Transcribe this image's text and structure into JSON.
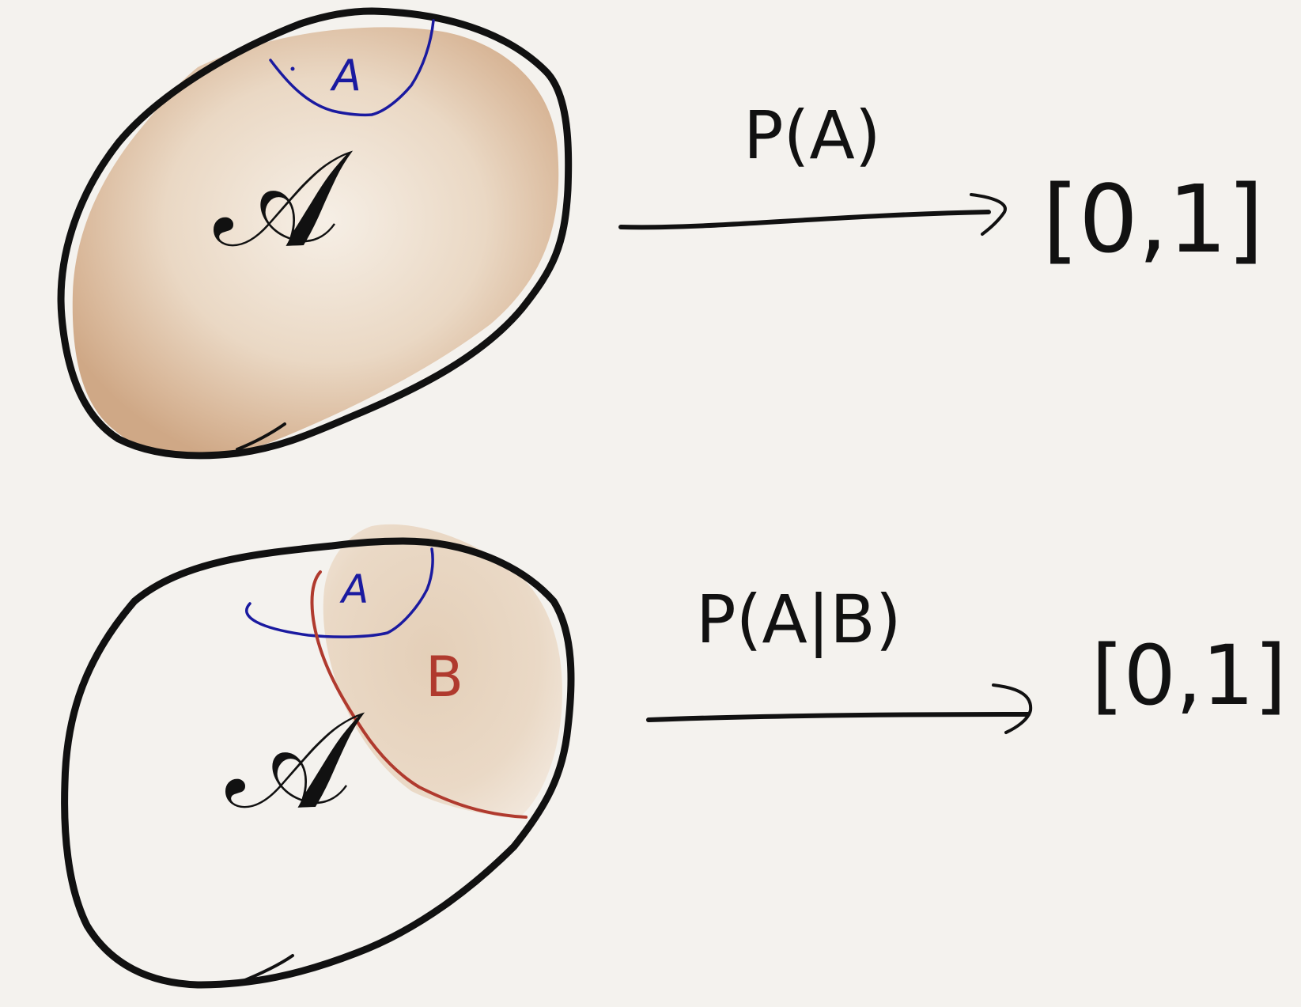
{
  "canvas": {
    "background": "#f4f2ee"
  },
  "colors": {
    "ink": "#111111",
    "blue": "#1a1aa0",
    "red": "#b03a2e",
    "shade_light": "#eadccd",
    "shade_dark": "#c99a76"
  },
  "diagrams": [
    {
      "id": "unconditional",
      "space_label": "𝒜",
      "event_label": "A",
      "mapping_label": "P(A)",
      "codomain_label": "[0,1]"
    },
    {
      "id": "conditional",
      "space_label": "𝒜",
      "event_label": "A",
      "condition_label": "B",
      "mapping_label": "P(A|B)",
      "codomain_label": "[0,1]"
    }
  ]
}
